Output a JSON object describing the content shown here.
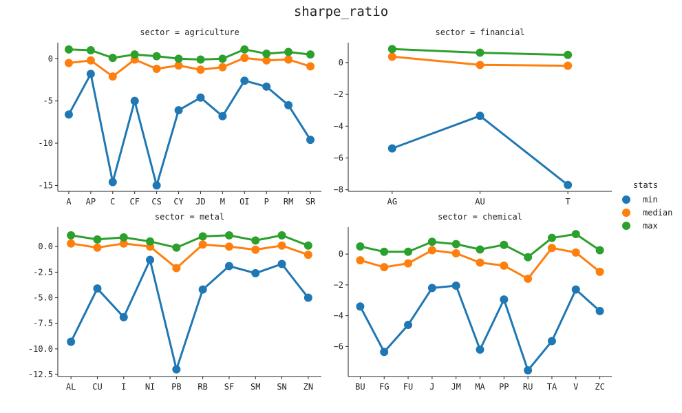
{
  "title": "sharpe_ratio",
  "legend": {
    "title": "stats",
    "entries": [
      {
        "name": "min",
        "color": "#1f77b4"
      },
      {
        "name": "median",
        "color": "#ff7f0e"
      },
      {
        "name": "max",
        "color": "#2ca02c"
      }
    ]
  },
  "chart_data": [
    {
      "type": "line",
      "title": "sector = agriculture",
      "categories": [
        "A",
        "AP",
        "C",
        "CF",
        "CS",
        "CY",
        "JD",
        "M",
        "OI",
        "P",
        "RM",
        "SR"
      ],
      "ylim": [
        -15.7,
        1.9
      ],
      "yticks": [
        0,
        -5,
        -10,
        -15
      ],
      "yticklabels": [
        "0",
        "-5",
        "-10",
        "-15"
      ],
      "series": [
        {
          "name": "min",
          "values": [
            -6.6,
            -1.8,
            -14.6,
            -5.0,
            -15.0,
            -6.1,
            -4.6,
            -6.8,
            -2.6,
            -3.3,
            -5.5,
            -9.6
          ]
        },
        {
          "name": "median",
          "values": [
            -0.5,
            -0.2,
            -2.1,
            -0.1,
            -1.2,
            -0.8,
            -1.3,
            -1.0,
            0.1,
            -0.2,
            -0.1,
            -0.9
          ]
        },
        {
          "name": "max",
          "values": [
            1.1,
            1.0,
            0.1,
            0.5,
            0.3,
            0.0,
            -0.1,
            0.0,
            1.1,
            0.6,
            0.8,
            0.5
          ]
        }
      ]
    },
    {
      "type": "line",
      "title": "sector = financial",
      "categories": [
        "AG",
        "AU",
        "T"
      ],
      "ylim": [
        -8.1,
        1.25
      ],
      "yticks": [
        0,
        -2,
        -4,
        -6,
        -8
      ],
      "yticklabels": [
        "0",
        "−2",
        "−4",
        "−6",
        "−8"
      ],
      "series": [
        {
          "name": "min",
          "values": [
            -5.4,
            -3.35,
            -7.7
          ]
        },
        {
          "name": "median",
          "values": [
            0.37,
            -0.15,
            -0.2
          ]
        },
        {
          "name": "max",
          "values": [
            0.85,
            0.62,
            0.48
          ]
        }
      ]
    },
    {
      "type": "line",
      "title": "sector = metal",
      "categories": [
        "AL",
        "CU",
        "I",
        "NI",
        "PB",
        "RB",
        "SF",
        "SM",
        "SN",
        "ZN"
      ],
      "ylim": [
        -12.7,
        1.9
      ],
      "yticks": [
        0,
        -2.5,
        -5,
        -7.5,
        -10,
        -12.5
      ],
      "yticklabels": [
        "0.0",
        "-2.5",
        "-5.0",
        "-7.5",
        "-10.0",
        "-12.5"
      ],
      "series": [
        {
          "name": "min",
          "values": [
            -9.3,
            -4.1,
            -6.9,
            -1.3,
            -12.0,
            -4.2,
            -1.9,
            -2.6,
            -1.7,
            -5.0
          ]
        },
        {
          "name": "median",
          "values": [
            0.3,
            -0.1,
            0.3,
            0.0,
            -2.1,
            0.2,
            0.0,
            -0.3,
            0.1,
            -0.8
          ]
        },
        {
          "name": "max",
          "values": [
            1.1,
            0.7,
            0.9,
            0.5,
            -0.1,
            1.0,
            1.1,
            0.6,
            1.1,
            0.1
          ]
        }
      ]
    },
    {
      "type": "line",
      "title": "sector = chemical",
      "categories": [
        "BU",
        "FG",
        "FU",
        "J",
        "JM",
        "MA",
        "PP",
        "RU",
        "TA",
        "V",
        "ZC"
      ],
      "ylim": [
        -7.95,
        1.75
      ],
      "yticks": [
        0,
        -2,
        -4,
        -6
      ],
      "yticklabels": [
        "0",
        "−2",
        "−4",
        "−6"
      ],
      "series": [
        {
          "name": "min",
          "values": [
            -3.4,
            -6.35,
            -4.6,
            -2.2,
            -2.05,
            -6.2,
            -2.95,
            -7.55,
            -5.65,
            -2.3,
            -3.7
          ]
        },
        {
          "name": "median",
          "values": [
            -0.4,
            -0.85,
            -0.6,
            0.25,
            0.05,
            -0.55,
            -0.75,
            -1.6,
            0.4,
            0.1,
            -1.15
          ]
        },
        {
          "name": "max",
          "values": [
            0.5,
            0.15,
            0.15,
            0.8,
            0.65,
            0.3,
            0.6,
            -0.2,
            1.05,
            1.3,
            0.25
          ]
        }
      ]
    }
  ]
}
